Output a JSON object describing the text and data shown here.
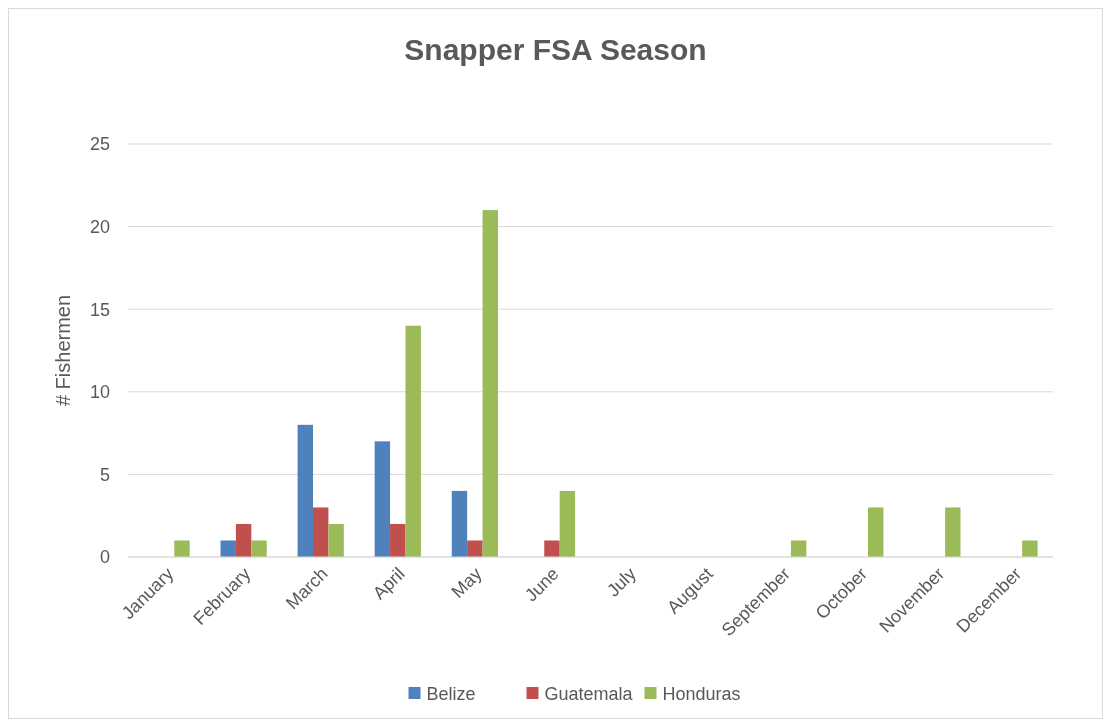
{
  "chart_data": {
    "type": "bar",
    "title": "Snapper FSA Season",
    "ylabel": "# Fishermen",
    "categories": [
      "January",
      "February",
      "March",
      "April",
      "May",
      "June",
      "July",
      "August",
      "September",
      "October",
      "November",
      "December"
    ],
    "series": [
      {
        "name": "Belize",
        "color": "#4f81bd",
        "values": [
          0,
          1,
          8,
          7,
          4,
          0,
          0,
          0,
          0,
          0,
          0,
          0
        ]
      },
      {
        "name": "Guatemala",
        "color": "#c0504d",
        "values": [
          0,
          2,
          3,
          2,
          1,
          1,
          0,
          0,
          0,
          0,
          0,
          0
        ]
      },
      {
        "name": "Honduras",
        "color": "#9bbb59",
        "values": [
          1,
          1,
          2,
          14,
          21,
          4,
          0,
          0,
          1,
          3,
          3,
          1
        ]
      }
    ],
    "ylim": [
      0,
      25
    ],
    "yticks": [
      0,
      5,
      10,
      15,
      20,
      25
    ],
    "grid": "y",
    "legend": "bottom"
  }
}
